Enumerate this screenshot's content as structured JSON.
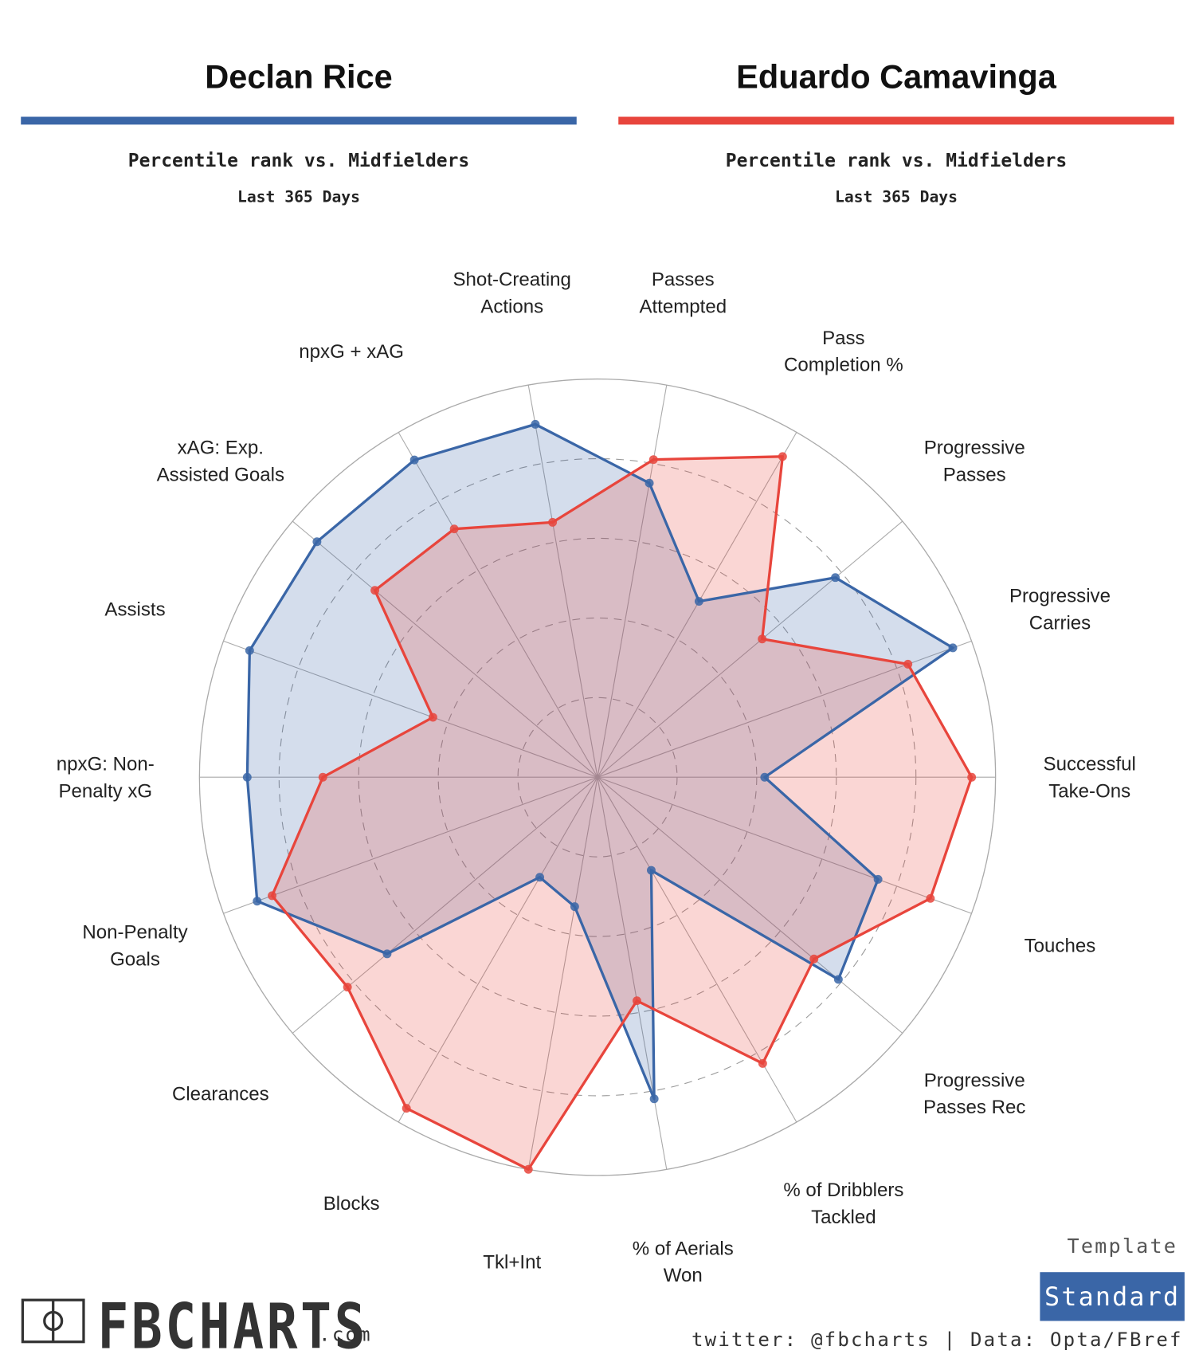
{
  "header": {
    "subtitle": "Percentile rank vs. Midfielders",
    "period": "Last 365 Days"
  },
  "chart_data": {
    "type": "radar",
    "categories": [
      "Successful\nTake-Ons",
      "Progressive\nCarries",
      "Progressive\nPasses",
      "Pass\nCompletion %",
      "Passes\nAttempted",
      "Shot-Creating\nActions",
      "npxG + xAG",
      "xAG: Exp.\nAssisted Goals",
      "Assists",
      "npxG: Non-\nPenalty xG",
      "Non-Penalty\nGoals",
      "Clearances",
      "Blocks",
      "Tkl+Int",
      "% of Aerials\nWon",
      "% of Dribblers\nTackled",
      "Progressive\nPasses Rec",
      "Touches"
    ],
    "rlim": [
      0,
      100
    ],
    "rticks": [
      20,
      40,
      60,
      80,
      100
    ],
    "series": [
      {
        "name": "Declan Rice",
        "color": "#3a66a7",
        "values": [
          42,
          95,
          78,
          51,
          75,
          90,
          92,
          92,
          93,
          88,
          91,
          69,
          29,
          33,
          82,
          27,
          79,
          75
        ]
      },
      {
        "name": "Eduardo Camavinga",
        "color": "#e8453c",
        "values": [
          94,
          83,
          54,
          93,
          81,
          65,
          72,
          73,
          44,
          69,
          87,
          82,
          96,
          100,
          57,
          83,
          71,
          89
        ]
      }
    ]
  },
  "footer": {
    "logo": "FBCHARTS",
    "logo_suffix": ".com",
    "template_label": "Template",
    "template": "Standard",
    "credit": "twitter: @fbcharts | Data: Opta/FBref"
  }
}
